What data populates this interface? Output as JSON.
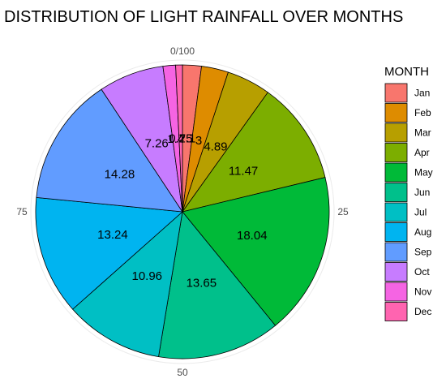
{
  "chart_data": {
    "type": "pie",
    "title": "DISTRIBUTION OF LIGHT RAINFALL OVER MONTHS",
    "legend_title": "MONTH",
    "legend_position": "right",
    "axis_ticks": [
      "0/100",
      "25",
      "50",
      "75"
    ],
    "slices": [
      {
        "label": "Jan",
        "value": 2.1,
        "data_label": "2.1",
        "color": "#F8766D"
      },
      {
        "label": "Feb",
        "value": 3.0,
        "data_label": "3",
        "color": "#DE8C00"
      },
      {
        "label": "Mar",
        "value": 4.89,
        "data_label": "4.89",
        "color": "#B79F00"
      },
      {
        "label": "Apr",
        "value": 11.47,
        "data_label": "11.47",
        "color": "#7CAE00"
      },
      {
        "label": "May",
        "value": 18.04,
        "data_label": "18.04",
        "color": "#00BA38"
      },
      {
        "label": "Jun",
        "value": 13.65,
        "data_label": "13.65",
        "color": "#00C08B"
      },
      {
        "label": "Jul",
        "value": 10.96,
        "data_label": "10.96",
        "color": "#00BFC4"
      },
      {
        "label": "Aug",
        "value": 13.24,
        "data_label": "13.24",
        "color": "#00B4F0"
      },
      {
        "label": "Sep",
        "value": 14.28,
        "data_label": "14.28",
        "color": "#619CFF"
      },
      {
        "label": "Oct",
        "value": 7.26,
        "data_label": "7.26",
        "color": "#C77CFF"
      },
      {
        "label": "Nov",
        "value": 1.4,
        "data_label": "1.4",
        "color": "#F564E3"
      },
      {
        "label": "Dec",
        "value": 0.75,
        "data_label": "0.75",
        "color": "#FF64B0"
      }
    ]
  }
}
